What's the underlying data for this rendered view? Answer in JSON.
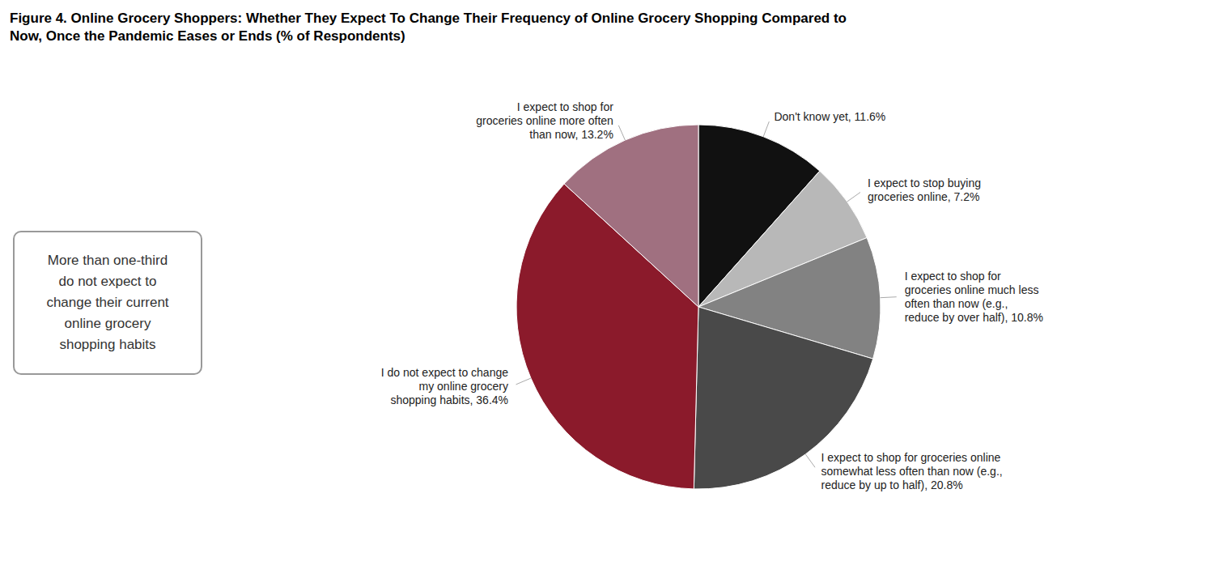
{
  "chart_data": {
    "type": "pie",
    "title": "Figure 4. Online Grocery Shoppers: Whether They Expect To Change Their Frequency of Online Grocery Shopping Compared to\nNow, Once the Pandemic Eases or Ends (% of Respondents)",
    "categories": [
      "Don't know yet, 11.6%",
      "I expect to stop buying\ngroceries online, 7.2%",
      "I expect to shop for\ngroceries online much less\noften than now (e.g.,\nreduce by over half), 10.8%",
      "I expect to shop for groceries online\nsomewhat less often than now (e.g.,\nreduce by up to half), 20.8%",
      "I do not expect to change\nmy online grocery\nshopping habits, 36.4%",
      "I expect to shop for\ngroceries online more often\nthan now, 13.2%"
    ],
    "values": [
      11.6,
      7.2,
      10.8,
      20.8,
      36.4,
      13.2
    ],
    "colors": [
      "#111111",
      "#b8b8b8",
      "#828282",
      "#494949",
      "#8b1a2b",
      "#a07080"
    ],
    "annotations": [
      "More than one-third\ndo not expect to\nchange their current\nonline grocery\nshopping habits"
    ]
  }
}
